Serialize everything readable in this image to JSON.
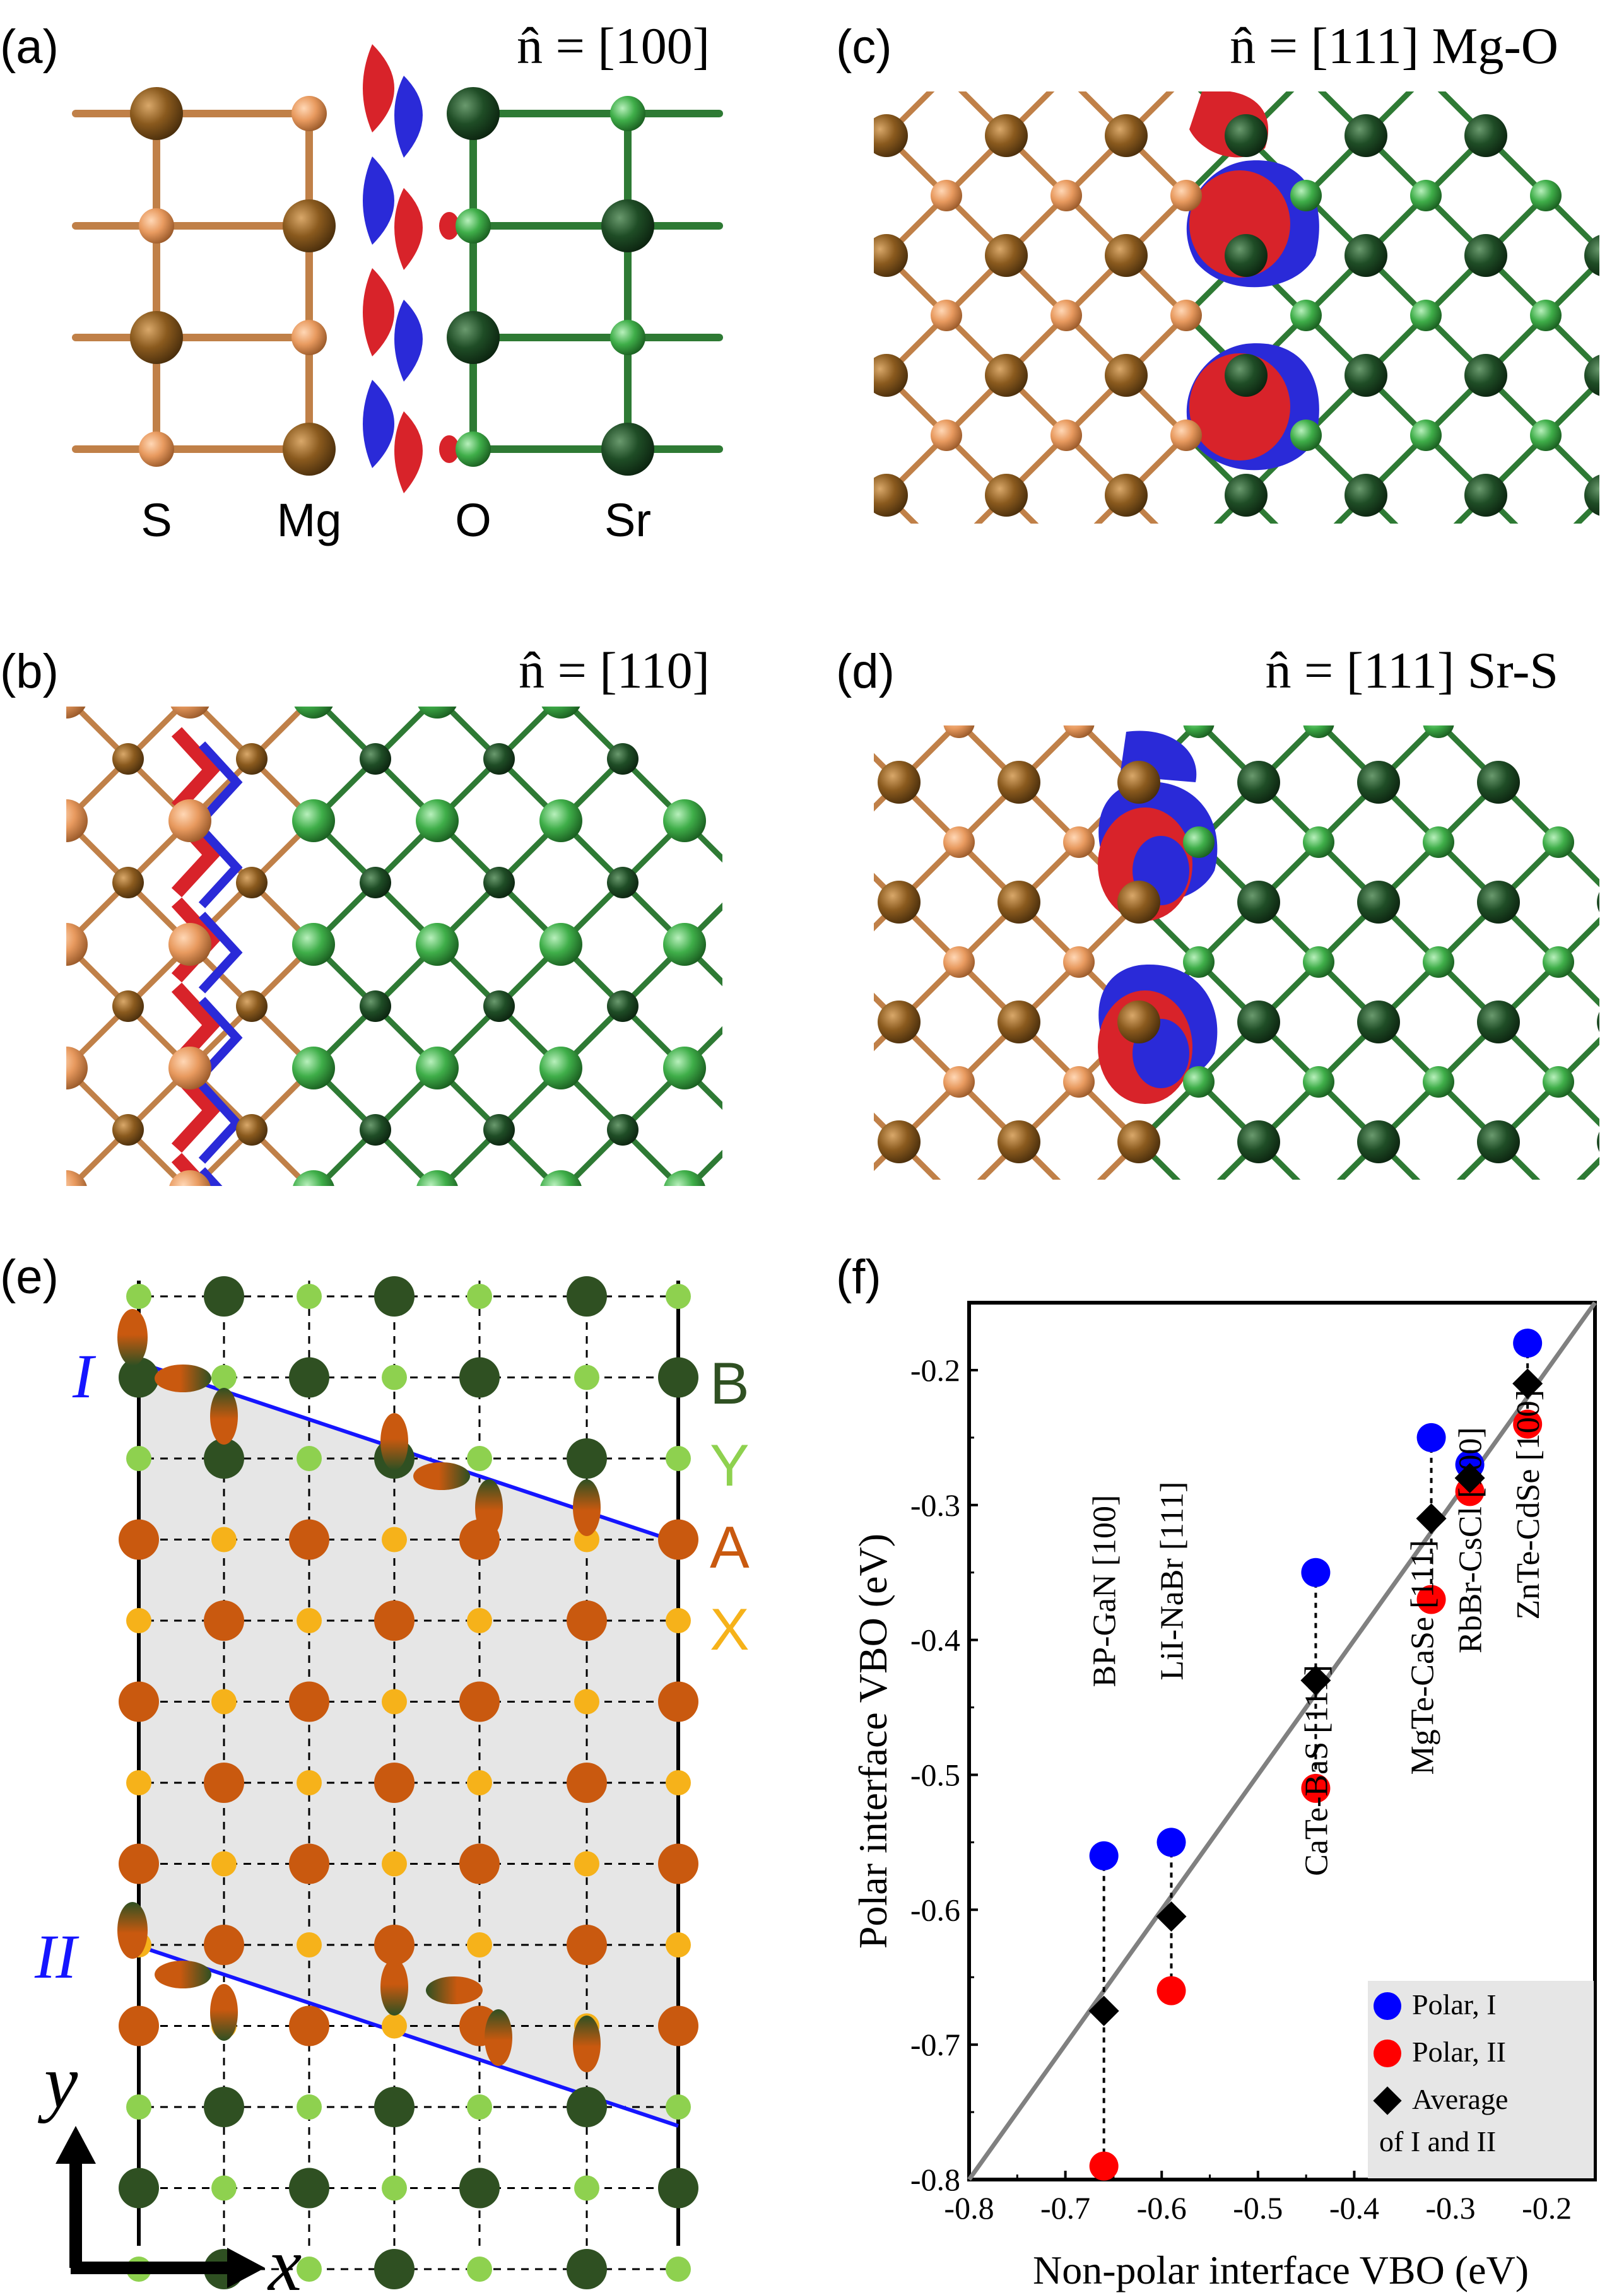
{
  "panels": {
    "a": {
      "label": "(a)",
      "title": "n̂ = [100]",
      "atoms": [
        "S",
        "Mg",
        "O",
        "Sr"
      ]
    },
    "b": {
      "label": "(b)",
      "title": "n̂ = [110]"
    },
    "c": {
      "label": "(c)",
      "title": "n̂ = [111] Mg-O"
    },
    "d": {
      "label": "(d)",
      "title": "n̂ = [111] Sr-S"
    },
    "e": {
      "label": "(e)",
      "layers": [
        "B",
        "Y",
        "A",
        "X"
      ],
      "interfaces": [
        "I",
        "II"
      ],
      "axis_x": "x",
      "axis_y": "y"
    },
    "f": {
      "label": "(f)"
    }
  },
  "colors": {
    "S": "#8a5a1e",
    "Mg": "#e89a5f",
    "O": "#1f4d26",
    "Sr": "#3fae49",
    "B": "#2f5022",
    "Y": "#8ed14f",
    "A": "#c9590f",
    "X": "#f6b21a",
    "polar_I": "#0000ff",
    "polar_II": "#ff0000",
    "average": "#000000",
    "fit_line": "#808080",
    "iso_red": "#d8232a",
    "iso_blue": "#2a2ad8"
  },
  "chart_data": {
    "type": "scatter",
    "xlabel": "Non-polar interface VBO (eV)",
    "ylabel": "Polar interface VBO (eV)",
    "xlim": [
      -0.8,
      -0.15
    ],
    "ylim": [
      -0.8,
      -0.15
    ],
    "xticks": [
      "-0.8",
      "-0.7",
      "-0.6",
      "-0.5",
      "-0.4",
      "-0.3",
      "-0.2"
    ],
    "yticks": [
      "-0.8",
      "-0.7",
      "-0.6",
      "-0.5",
      "-0.4",
      "-0.3",
      "-0.2"
    ],
    "line": {
      "from": [
        -0.8,
        -0.8
      ],
      "to": [
        -0.15,
        -0.15
      ]
    },
    "legend": {
      "position": "bottom-right",
      "entries": [
        "Polar, I",
        "Polar, II",
        "Average",
        "of I and II"
      ]
    },
    "systems": [
      {
        "label": "BP-GaN [100]",
        "x": -0.66,
        "polar_I": -0.56,
        "polar_II": -0.79,
        "average": -0.675
      },
      {
        "label": "LiI-NaBr [111]",
        "x": -0.59,
        "polar_I": -0.55,
        "polar_II": -0.66,
        "average": -0.605
      },
      {
        "label": "CaTe-BaS [111]",
        "x": -0.44,
        "polar_I": -0.35,
        "polar_II": -0.51,
        "average": -0.43
      },
      {
        "label": "MgTe-CaSe [111]",
        "x": -0.32,
        "polar_I": -0.25,
        "polar_II": -0.37,
        "average": -0.31
      },
      {
        "label": "RbBr-CsCl [100]",
        "x": -0.28,
        "polar_I": -0.27,
        "polar_II": -0.29,
        "average": -0.28
      },
      {
        "label": "ZnTe-CdSe [100]",
        "x": -0.22,
        "polar_I": -0.18,
        "polar_II": -0.24,
        "average": -0.21
      }
    ]
  }
}
